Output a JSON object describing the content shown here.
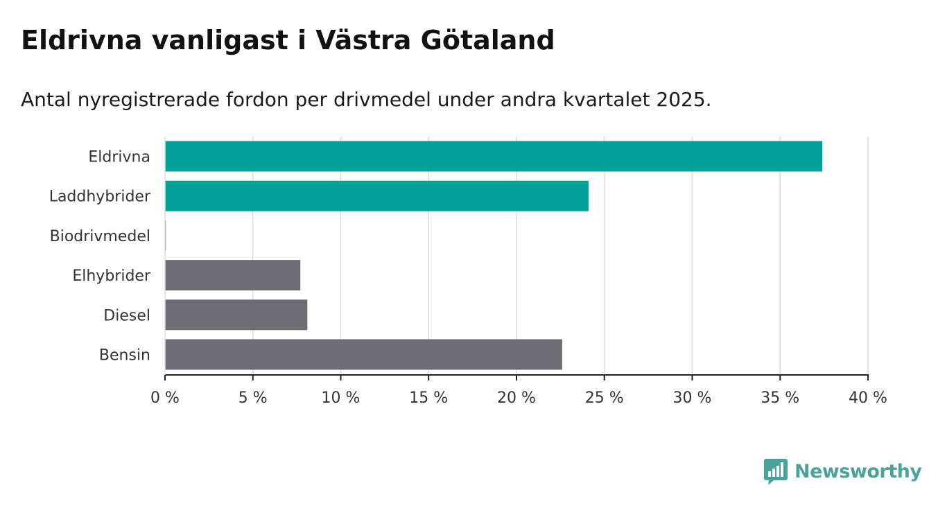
{
  "title": "Eldrivna vanligast i Västra Götaland",
  "subtitle": "Antal nyregistrerade fordon per drivmedel under andra kvartalet 2025.",
  "brand": {
    "name": "Newsworthy",
    "icon": "newsworthy-logo-icon",
    "color": "#4aa39a"
  },
  "chart_data": {
    "type": "bar",
    "orientation": "horizontal",
    "categories": [
      "Eldrivna",
      "Laddhybrider",
      "Biodrivmedel",
      "Elhybrider",
      "Diesel",
      "Bensin"
    ],
    "values": [
      37.4,
      24.1,
      0.05,
      7.7,
      8.1,
      22.6
    ],
    "colors": [
      "#00a29a",
      "#00a29a",
      "#6e6d75",
      "#6e6d75",
      "#6e6d75",
      "#6e6d75"
    ],
    "xlim": [
      0,
      40
    ],
    "xticks": [
      0,
      5,
      10,
      15,
      20,
      25,
      30,
      35,
      40
    ],
    "xtick_labels": [
      "0 %",
      "5 %",
      "10 %",
      "15 %",
      "20 %",
      "25 %",
      "30 %",
      "35 %",
      "40 %"
    ],
    "grid": true
  }
}
